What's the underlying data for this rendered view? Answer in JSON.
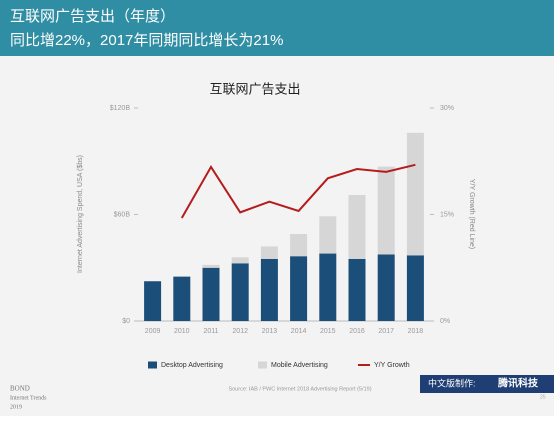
{
  "header": {
    "title": "互联网广告支出（年度）",
    "subtitle": "同比增22%，2017年同期同比增长为21%"
  },
  "chart_data": {
    "type": "bar",
    "title": "互联网广告支出",
    "categories": [
      "2009",
      "2010",
      "2011",
      "2012",
      "2013",
      "2014",
      "2015",
      "2016",
      "2017",
      "2018"
    ],
    "series": [
      {
        "name": "Desktop Advertising",
        "color": "#1b4f79",
        "values": [
          22.4,
          25,
          30,
          32.5,
          35,
          36.5,
          38,
          35,
          37.5,
          37
        ]
      },
      {
        "name": "Mobile Advertising",
        "color": "#d6d6d6",
        "values": [
          0,
          0,
          1.6,
          3.4,
          7,
          12.5,
          21,
          36,
          49.5,
          69
        ]
      },
      {
        "name": "Y/Y Growth",
        "color": "#b51c1c",
        "axis": "y2",
        "values": [
          null,
          14.5,
          21.7,
          15.3,
          16.8,
          15.5,
          20.1,
          21.4,
          21,
          22
        ]
      }
    ],
    "ylabel": "Internet Advertising Spend, USA ($bs)",
    "y2label": "Y/Y Growth (Red Line)",
    "ylim": [
      0,
      120
    ],
    "yticks": [
      {
        "value": 0,
        "label": "$0"
      },
      {
        "value": 60,
        "label": "$60B"
      },
      {
        "value": 120,
        "label": "$120B"
      }
    ],
    "y2lim": [
      0,
      30
    ],
    "y2ticks": [
      {
        "value": 0,
        "label": "0%"
      },
      {
        "value": 15,
        "label": "15%"
      },
      {
        "value": 30,
        "label": "30%"
      }
    ],
    "source": "Source: IAB / PWC Internet 2018 Advertising Report (5/19)"
  },
  "footer": {
    "brand": "BOND",
    "report": "Internet Trends",
    "year": "2019",
    "credit": "中文版制作:",
    "maker": "腾讯科技",
    "page": "25"
  }
}
